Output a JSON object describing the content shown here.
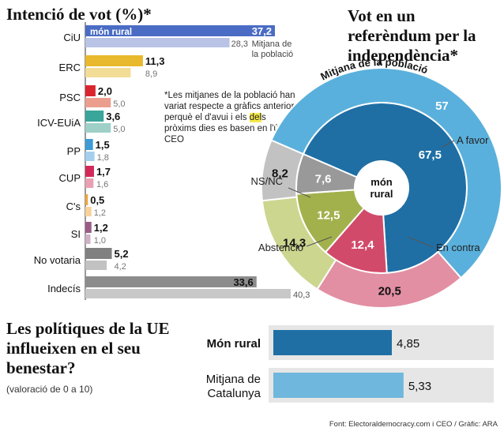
{
  "titles": {
    "vote": "Intenció de vot (%)*",
    "referendum": "Vot en un referèndum per la independència*",
    "eu": "Les polítiques de la UE influeixen en el seu benestar?",
    "eu_sub": "(valoració de 0 a 10)"
  },
  "note": {
    "before": "*Les mitjanes de la població han variat respecte a gràfics anteriors perquè el d'avui i els ",
    "highlight": "del",
    "after": "s pròxims dies es basen en l'últim CEO"
  },
  "footer": "Font: Electoraldemocracy.com i CEO / Gràfic: ARA",
  "chart_data": [
    {
      "type": "bar",
      "title": "Intenció de vot (%)*",
      "categories": [
        "CiU",
        "ERC",
        "PSC",
        "ICV-EUiA",
        "PP",
        "CUP",
        "C's",
        "SI",
        "No votaria",
        "Indecís"
      ],
      "colors": [
        "#4a6cc4",
        "#e8b92c",
        "#d9262e",
        "#3aa59a",
        "#3d9bd6",
        "#d12a5a",
        "#f0a53c",
        "#9a5d86",
        "#808080",
        "#8c8c8c"
      ],
      "light_colors": [
        "#b8c3e6",
        "#f3dc95",
        "#ec9e8e",
        "#9ed0c8",
        "#a6cfee",
        "#e9a0b2",
        "#f7d29c",
        "#cfb0c4",
        "#c2c2c2",
        "#c8c8c8"
      ],
      "series": [
        {
          "name": "món rural",
          "values": [
            37.2,
            11.3,
            2.0,
            3.6,
            1.5,
            1.7,
            0.5,
            1.2,
            5.2,
            33.6
          ]
        },
        {
          "name": "Mitjana de la població",
          "values": [
            28.3,
            8.9,
            5.0,
            5.0,
            1.8,
            1.6,
            1.2,
            1.0,
            4.2,
            40.3
          ]
        }
      ],
      "value_labels": [
        [
          "37,2",
          "11,3",
          "2,0",
          "3,6",
          "1,5",
          "1,7",
          "0,5",
          "1,2",
          "5,2",
          "33,6"
        ],
        [
          "28,3",
          "8,9",
          "5,0",
          "5,0",
          "1,8",
          "1,6",
          "1,2",
          "1,0",
          "4,2",
          "40,3"
        ]
      ],
      "legend": {
        "inner_label": "món rural",
        "outer_label_lines": [
          "Mitjana de",
          "la població"
        ]
      }
    },
    {
      "type": "pie",
      "title": "Vot en un referèndum per la independència*",
      "center_label_lines": [
        "món",
        "rural"
      ],
      "categories": [
        "A favor",
        "En contra",
        "Abstenció",
        "NS/NC"
      ],
      "colors": [
        "#1f6fa5",
        "#d24a6a",
        "#a3b14d",
        "#999999"
      ],
      "outer_colors": [
        "#5ab0dc",
        "#e28fa3",
        "#cdd68f",
        "#c2c2c2"
      ],
      "outer_ring_label": "Mitjana de la població",
      "series": [
        {
          "name": "món rural",
          "values": [
            67.5,
            12.4,
            12.5,
            7.6
          ]
        },
        {
          "name": "Mitjana de la població",
          "values": [
            57,
            20.5,
            14.3,
            8.2
          ]
        }
      ],
      "value_labels": [
        [
          "67,5",
          "12,4",
          "12,5",
          "7,6"
        ],
        [
          "57",
          "20,5",
          "14,3",
          "8,2"
        ]
      ]
    },
    {
      "type": "bar",
      "title": "Les polítiques de la UE influeixen en el seu benestar?",
      "categories": [
        [
          "Món rural"
        ],
        [
          "Mitjana de",
          "Catalunya"
        ]
      ],
      "values": [
        4.85,
        5.33
      ],
      "value_labels": [
        "4,85",
        "5,33"
      ],
      "colors": [
        "#1f6fa5",
        "#6fb7dc"
      ],
      "xlim": [
        0,
        10
      ]
    }
  ]
}
